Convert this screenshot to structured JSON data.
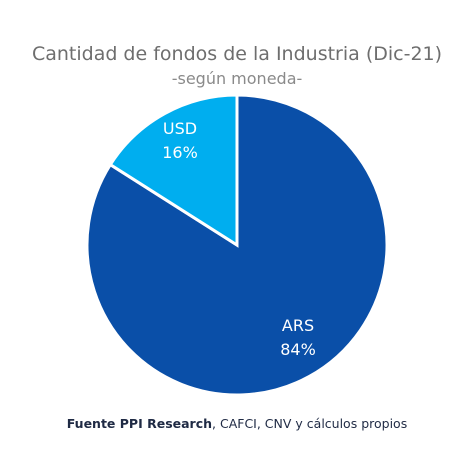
{
  "chart_data": {
    "type": "pie",
    "title": "Cantidad de fondos de la Industria (Dic-21)",
    "subtitle": "-según moneda-",
    "slices": [
      {
        "label": "ARS",
        "value": 84,
        "value_label": "84%",
        "color": "#0a4fa8"
      },
      {
        "label": "USD",
        "value": 16,
        "value_label": "16%",
        "color": "#00aeef"
      }
    ],
    "source_bold": "Fuente PPI Research",
    "source_rest": ", CAFCI, CNV y cálculos propios"
  }
}
